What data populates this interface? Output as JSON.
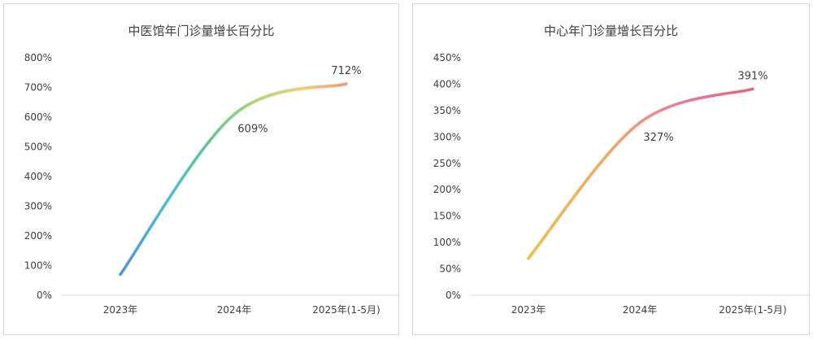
{
  "chart_data": [
    {
      "type": "line",
      "title": "中医馆年门诊量增长百分比",
      "categories": [
        "2023年",
        "2024年",
        "2025年(1-5月)"
      ],
      "series": [
        {
          "values": [
            70,
            609,
            712
          ]
        }
      ],
      "data_labels": [
        "",
        "609%",
        "712%"
      ],
      "y_ticks": [
        "0%",
        "100%",
        "200%",
        "300%",
        "400%",
        "500%",
        "600%",
        "700%",
        "800%"
      ],
      "ylim": [
        0,
        800
      ],
      "y_step": 100,
      "grid": false,
      "smooth": true,
      "colors": [
        "#4a8fd8",
        "#3fbfd6",
        "#55c98a",
        "#a9d86a",
        "#f3cf62",
        "#f09a72"
      ]
    },
    {
      "type": "line",
      "title": "中心年门诊量增长百分比",
      "categories": [
        "2023年",
        "2024年",
        "2025年(1-5月)"
      ],
      "series": [
        {
          "values": [
            70,
            327,
            391
          ]
        }
      ],
      "data_labels": [
        "",
        "327%",
        "391%"
      ],
      "y_ticks": [
        "0%",
        "50%",
        "100%",
        "150%",
        "200%",
        "250%",
        "300%",
        "350%",
        "400%",
        "450%"
      ],
      "ylim": [
        0,
        450
      ],
      "y_step": 50,
      "grid": false,
      "smooth": true,
      "colors": [
        "#f0c13a",
        "#f3a85a",
        "#e9779a",
        "#e0607a"
      ]
    }
  ]
}
